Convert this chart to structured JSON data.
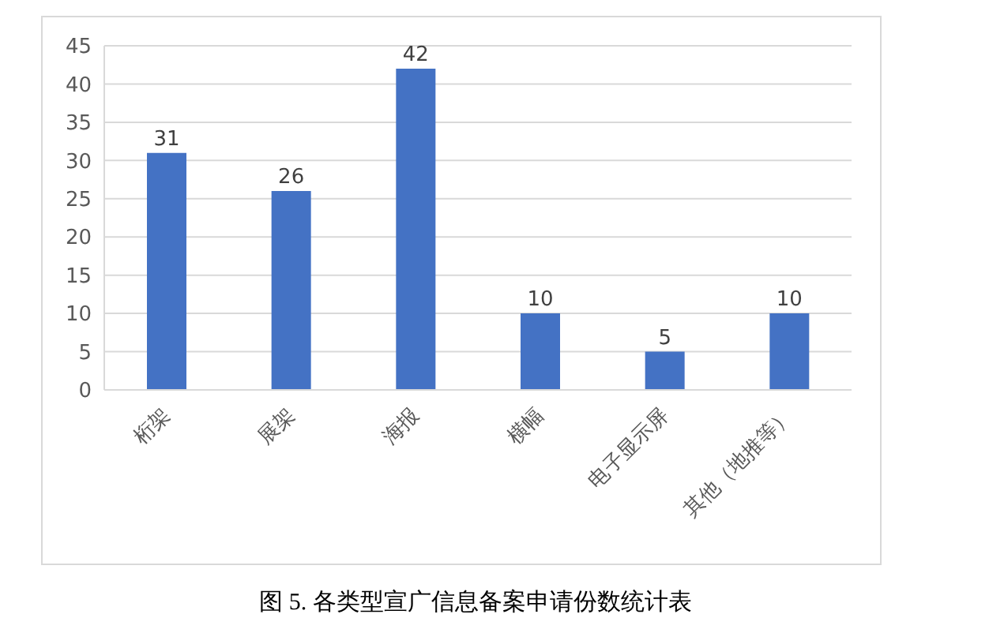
{
  "chart_data": {
    "type": "bar",
    "title": "图 5. 各类型宣广信息备案申请份数统计表",
    "categories": [
      "桁架",
      "展架",
      "海报",
      "横幅",
      "电子显示屏",
      "其他（地推等）"
    ],
    "values": [
      31,
      26,
      42,
      10,
      5,
      10
    ],
    "color": "#4472c4",
    "ylim": [
      0,
      45
    ],
    "yticks": [
      0,
      5,
      10,
      15,
      20,
      25,
      30,
      35,
      40,
      45
    ],
    "grid": "y",
    "data_labels": true
  }
}
